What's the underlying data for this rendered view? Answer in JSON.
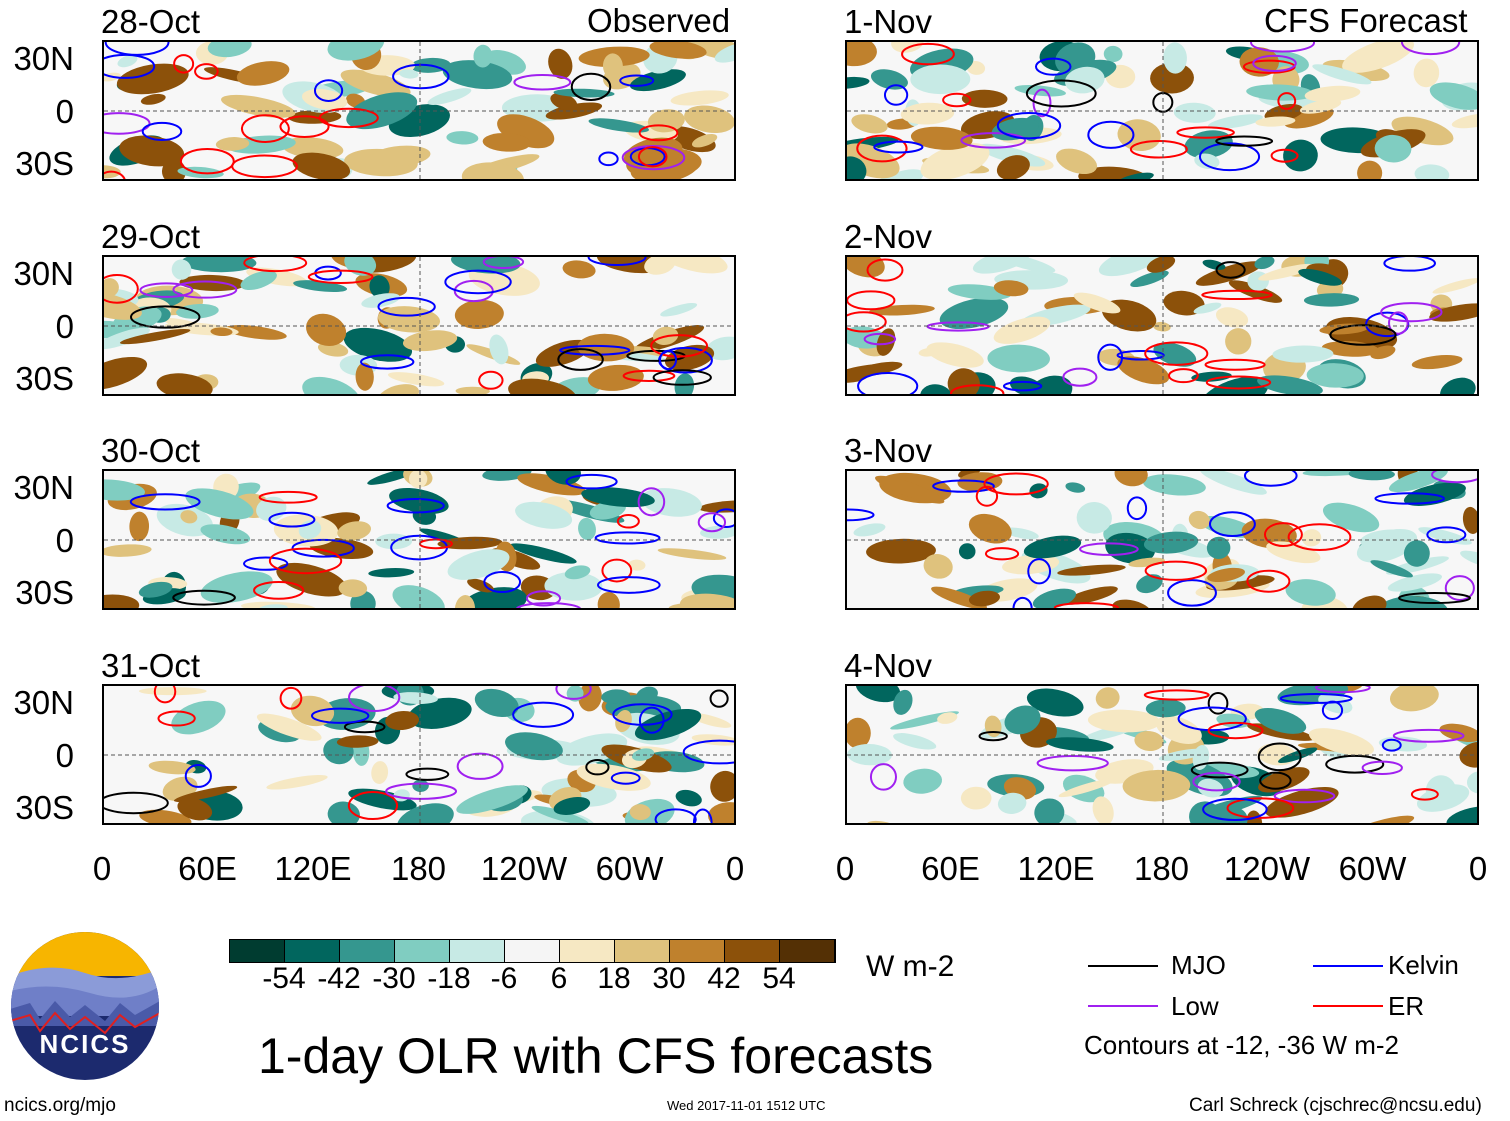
{
  "header": {
    "left_label": "Observed",
    "right_label": "CFS Forecast"
  },
  "panels": {
    "observed": [
      "28-Oct",
      "29-Oct",
      "30-Oct",
      "31-Oct"
    ],
    "forecast": [
      "1-Nov",
      "2-Nov",
      "3-Nov",
      "4-Nov"
    ]
  },
  "axes": {
    "y_ticks": [
      "30N",
      "0",
      "30S"
    ],
    "x_ticks": [
      "0",
      "60E",
      "120E",
      "180",
      "120W",
      "60W",
      "0"
    ]
  },
  "colorbar": {
    "labels": [
      "-54",
      "-42",
      "-30",
      "-18",
      "-6",
      "6",
      "18",
      "30",
      "42",
      "54"
    ],
    "colors": [
      "#003c30",
      "#01665e",
      "#35978f",
      "#80cdc1",
      "#c7eae5",
      "#f5f5f5",
      "#f6e8c3",
      "#dfc27d",
      "#bf812d",
      "#8c510a",
      "#543005"
    ],
    "units": "W m-2"
  },
  "legend": {
    "items": [
      {
        "label": "MJO",
        "color": "#000000"
      },
      {
        "label": "Kelvin",
        "color": "#0000ff"
      },
      {
        "label": "Low",
        "color": "#a020f0"
      },
      {
        "label": "ER",
        "color": "#ff0000"
      }
    ],
    "note": "Contours at -12, -36 W m-2"
  },
  "title": "1-day OLR with CFS forecasts",
  "logo": {
    "text": "NCICS"
  },
  "footer": {
    "left": "ncics.org/mjo",
    "center": "Wed 2017-11-01 1512 UTC",
    "right": "Carl Schreck (cjschrec@ncsu.edu)"
  }
}
